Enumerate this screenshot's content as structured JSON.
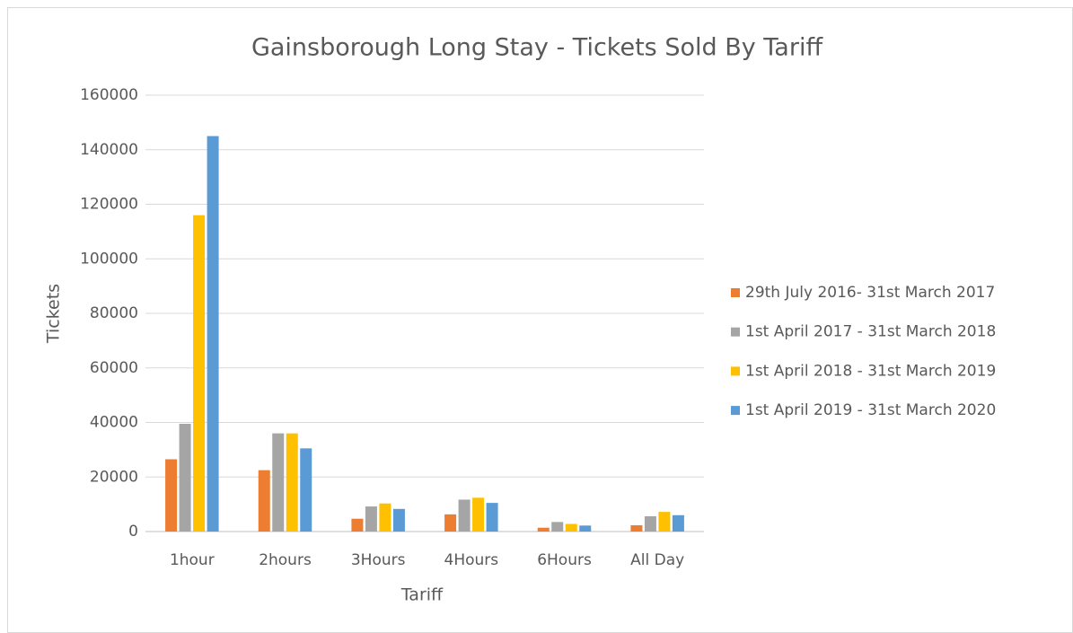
{
  "chart_data": {
    "type": "bar",
    "title": "Gainsborough Long Stay - Tickets Sold By Tariff",
    "x_label": "Tariff",
    "y_label": "Tickets",
    "categories": [
      "1hour",
      "2hours",
      "3Hours",
      "4Hours",
      "6Hours",
      "All Day"
    ],
    "series": [
      {
        "name": "29th July 2016- 31st March 2017",
        "color": "#ed7d31",
        "values": [
          26500,
          22500,
          4700,
          6300,
          1400,
          2300
        ]
      },
      {
        "name": "1st April 2017 - 31st March 2018",
        "color": "#a5a5a5",
        "values": [
          39500,
          36000,
          9200,
          11700,
          3500,
          5600
        ]
      },
      {
        "name": "1st April 2018 - 31st March 2019",
        "color": "#ffc000",
        "values": [
          116000,
          36000,
          10300,
          12400,
          2800,
          7200
        ]
      },
      {
        "name": "1st April 2019 - 31st March 2020",
        "color": "#5b9bd5",
        "values": [
          145000,
          30500,
          8300,
          10500,
          2200,
          6000
        ]
      }
    ],
    "ylim": [
      0,
      160000
    ],
    "yticks": [
      0,
      20000,
      40000,
      60000,
      80000,
      100000,
      120000,
      140000,
      160000
    ],
    "grid": true,
    "legend": "right"
  }
}
